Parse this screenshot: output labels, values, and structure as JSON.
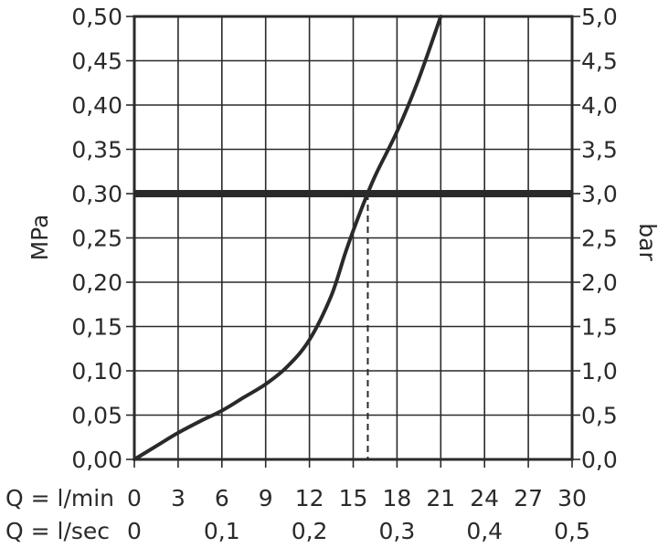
{
  "chart_data": {
    "type": "line",
    "title": "",
    "x_ticks_lmin": [
      "0",
      "3",
      "6",
      "9",
      "12",
      "15",
      "18",
      "21",
      "24",
      "27",
      "30"
    ],
    "x_ticks_lsec": [
      "0",
      "0,1",
      "0,2",
      "0,3",
      "0,4",
      "0,5"
    ],
    "x_label_lmin": "Q = l/min",
    "x_label_lsec": "Q = l/sec",
    "y_left_ticks": [
      "0,00",
      "0,05",
      "0,10",
      "0,15",
      "0,20",
      "0,25",
      "0,30",
      "0,35",
      "0,40",
      "0,45",
      "0,50"
    ],
    "y_right_ticks": [
      "0,0",
      "0,5",
      "1,0",
      "1,5",
      "2,0",
      "2,5",
      "3,0",
      "3,5",
      "4,0",
      "4,5",
      "5,0"
    ],
    "ylabel_left": "MPa",
    "ylabel_right": "bar",
    "xlim": [
      0,
      30
    ],
    "ylim": [
      0,
      0.5
    ],
    "grid": true,
    "series": [
      {
        "x": [
          0,
          1.5,
          3,
          4.5,
          6,
          7.5,
          9,
          10.5,
          12,
          13.5,
          14.5,
          15.5,
          16.5,
          18,
          19.5,
          21
        ],
        "y": [
          0.0,
          0.015,
          0.03,
          0.043,
          0.055,
          0.07,
          0.085,
          0.105,
          0.135,
          0.185,
          0.235,
          0.28,
          0.32,
          0.37,
          0.43,
          0.5
        ]
      }
    ],
    "reference_line": {
      "y": 0.3,
      "x_intersect": 16
    }
  }
}
